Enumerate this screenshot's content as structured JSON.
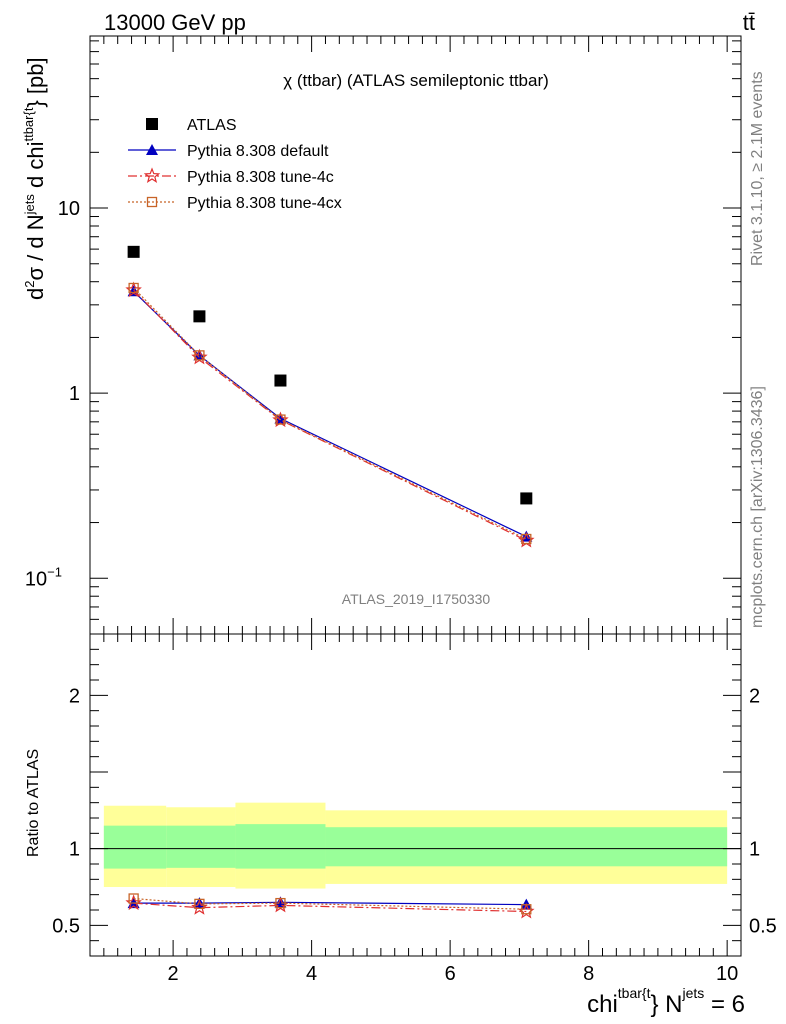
{
  "header": {
    "left": "13000 GeV pp",
    "right": "tt̄"
  },
  "side_labels": {
    "rivet": "Rivet 3.1.10, ≥ 2.1M events",
    "mcplots": "mcplots.cern.ch [arXiv:1306.3436]"
  },
  "chart_data": [
    {
      "type": "scatter",
      "title": "χ (ttbar) (ATLAS semileptonic ttbar)",
      "analysis_label": "ATLAS_2019_I1750330",
      "ylabel": {
        "main": "d",
        "sup1": "2",
        "sigma": "σ / d N",
        "sup2": "jets",
        "mid": " d chi",
        "sup3": "ttbar{t",
        "end": "} [pb]"
      },
      "xlim": [
        0.8,
        10.2
      ],
      "ylim": [
        0.05,
        85
      ],
      "log_y": true,
      "y_ticks": [
        "10",
        "1",
        "10"
      ],
      "y_tick_sup": "−1",
      "legend_position": "top-left",
      "x": [
        1.43,
        2.38,
        3.55,
        7.1
      ],
      "series": [
        {
          "name": "ATLAS",
          "values": [
            5.8,
            2.6,
            1.17,
            0.27
          ],
          "color": "#000000",
          "marker": "square"
        },
        {
          "name": "Pythia 8.308 default",
          "values": [
            3.55,
            1.6,
            0.73,
            0.168
          ],
          "color": "#0000c0",
          "marker": "triangle",
          "line": "solid"
        },
        {
          "name": "Pythia 8.308 tune-4c",
          "values": [
            3.6,
            1.56,
            0.715,
            0.16
          ],
          "color": "#e03030",
          "marker": "star",
          "line": "dashdot"
        },
        {
          "name": "Pythia 8.308 tune-4cx",
          "values": [
            3.7,
            1.6,
            0.72,
            0.163
          ],
          "color": "#c86428",
          "marker": "open-square",
          "line": "dotted"
        }
      ]
    },
    {
      "type": "scatter",
      "ylabel": "Ratio to ATLAS",
      "xlabel": {
        "main": "chi",
        "sup1": "tbar{t",
        "mid": "} N",
        "sup2": "jets",
        "end": " = 6"
      },
      "xlim": [
        0.8,
        10.2
      ],
      "ylim": [
        0.3,
        2.4
      ],
      "x_ticks": [
        "2",
        "4",
        "6",
        "8",
        "10"
      ],
      "y_ticks": [
        "0.5",
        "1",
        "2"
      ],
      "bands": [
        {
          "x0": 1.0,
          "x1": 1.9,
          "y_lo": 0.75,
          "y_hi": 1.28
        },
        {
          "x0": 1.9,
          "x1": 2.9,
          "y_lo": 0.75,
          "y_hi": 1.27
        },
        {
          "x0": 2.9,
          "x1": 4.2,
          "y_lo": 0.74,
          "y_hi": 1.3
        },
        {
          "x0": 4.2,
          "x1": 10.0,
          "y_lo": 0.77,
          "y_hi": 1.25
        }
      ],
      "inner_bands": [
        {
          "x0": 1.0,
          "x1": 1.9,
          "y_lo": 0.87,
          "y_hi": 1.15
        },
        {
          "x0": 1.9,
          "x1": 2.9,
          "y_lo": 0.875,
          "y_hi": 1.15
        },
        {
          "x0": 2.9,
          "x1": 4.2,
          "y_lo": 0.87,
          "y_hi": 1.16
        },
        {
          "x0": 4.2,
          "x1": 10.0,
          "y_lo": 0.885,
          "y_hi": 1.14
        }
      ],
      "x": [
        1.43,
        2.38,
        3.55,
        7.1
      ],
      "series": [
        {
          "name": "Pythia 8.308 default",
          "values": [
            0.645,
            0.645,
            0.65,
            0.635
          ],
          "color": "#0000c0",
          "marker": "triangle",
          "line": "solid"
        },
        {
          "name": "Pythia 8.308 tune-4c",
          "values": [
            0.645,
            0.615,
            0.63,
            0.59
          ],
          "color": "#e03030",
          "marker": "star",
          "line": "dashdot"
        },
        {
          "name": "Pythia 8.308 tune-4cx",
          "values": [
            0.675,
            0.64,
            0.645,
            0.605
          ],
          "color": "#c86428",
          "marker": "open-square",
          "line": "dotted"
        }
      ]
    }
  ]
}
